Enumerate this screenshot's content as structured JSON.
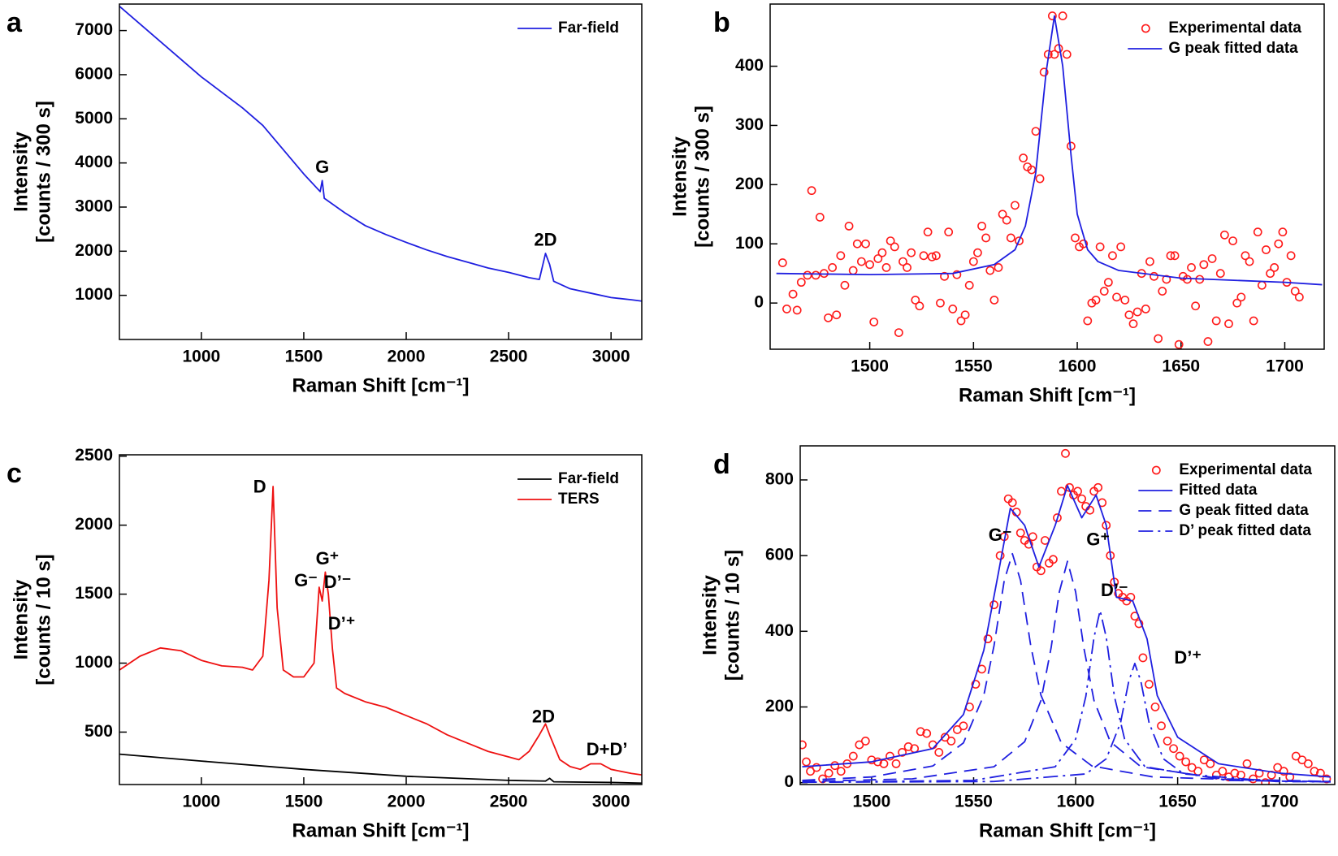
{
  "chart_data": [
    {
      "type": "line",
      "panel": "a",
      "x_label": "Raman Shift [cm⁻¹]",
      "y_label": [
        "Intensity",
        "[counts / 300 s]"
      ],
      "xlim": [
        600,
        3150
      ],
      "xticks": [
        1000,
        1500,
        2000,
        2500,
        3000
      ],
      "ylim": [
        0,
        7600
      ],
      "yticks": [
        1000,
        2000,
        3000,
        4000,
        5000,
        6000,
        7000
      ],
      "legend": "upper right",
      "series": [
        {
          "name": "Far-field",
          "color": "#1f1fe0",
          "style": "line",
          "x": [
            600,
            700,
            800,
            900,
            1000,
            1100,
            1200,
            1300,
            1400,
            1500,
            1580,
            1590,
            1600,
            1700,
            1800,
            1900,
            2000,
            2100,
            2200,
            2300,
            2400,
            2500,
            2600,
            2650,
            2680,
            2700,
            2720,
            2800,
            2900,
            3000,
            3100,
            3150
          ],
          "values": [
            7550,
            7150,
            6750,
            6350,
            5950,
            5600,
            5250,
            4850,
            4300,
            3750,
            3350,
            3600,
            3200,
            2870,
            2580,
            2380,
            2200,
            2030,
            1880,
            1750,
            1620,
            1520,
            1400,
            1360,
            1950,
            1700,
            1320,
            1150,
            1050,
            950,
            900,
            870
          ]
        }
      ],
      "annotations": [
        {
          "text": "G",
          "x": 1590,
          "y": 3880
        },
        {
          "text": "2D",
          "x": 2680,
          "y": 2230
        }
      ]
    },
    {
      "type": "combo",
      "panel": "b",
      "x_label": "Raman Shift [cm⁻¹]",
      "y_label": [
        "Intensity",
        "[counts / 300 s]"
      ],
      "xlim": [
        1452,
        1719
      ],
      "xticks": [
        1500,
        1550,
        1600,
        1650,
        1700
      ],
      "ylim": [
        -78,
        505
      ],
      "yticks": [
        0,
        100,
        200,
        300,
        400
      ],
      "legend": "upper right",
      "series": [
        {
          "name": "Experimental data",
          "color": "#ff1a1a",
          "style": "markers",
          "x": [
            1458,
            1460,
            1463,
            1465,
            1467,
            1470,
            1472,
            1474,
            1476,
            1478,
            1480,
            1482,
            1484,
            1486,
            1488,
            1490,
            1492,
            1494,
            1496,
            1498,
            1500,
            1502,
            1504,
            1506,
            1508,
            1510,
            1512,
            1514,
            1516,
            1518,
            1520,
            1522,
            1524,
            1526,
            1528,
            1530,
            1532,
            1534,
            1536,
            1538,
            1540,
            1542,
            1544,
            1546,
            1548,
            1550,
            1552,
            1554,
            1556,
            1558,
            1560,
            1562,
            1564,
            1566,
            1568,
            1570,
            1572,
            1574,
            1576,
            1578,
            1580,
            1582,
            1584,
            1586,
            1588,
            1589,
            1591,
            1593,
            1595,
            1597,
            1599,
            1601,
            1603,
            1605,
            1607,
            1609,
            1611,
            1613,
            1615,
            1617,
            1619,
            1621,
            1623,
            1625,
            1627,
            1629,
            1631,
            1633,
            1635,
            1637,
            1639,
            1641,
            1643,
            1645,
            1647,
            1649,
            1651,
            1653,
            1655,
            1657,
            1659,
            1661,
            1663,
            1665,
            1667,
            1669,
            1671,
            1673,
            1675,
            1677,
            1679,
            1681,
            1683,
            1685,
            1687,
            1689,
            1691,
            1693,
            1695,
            1697,
            1699,
            1701,
            1703,
            1705,
            1707
          ],
          "values": [
            68,
            -10,
            15,
            -12,
            35,
            47,
            190,
            47,
            145,
            50,
            -25,
            60,
            -20,
            80,
            30,
            130,
            55,
            100,
            70,
            100,
            65,
            -32,
            75,
            85,
            60,
            105,
            95,
            -50,
            70,
            60,
            85,
            5,
            -5,
            80,
            120,
            78,
            80,
            0,
            45,
            120,
            -10,
            48,
            -30,
            -20,
            30,
            70,
            85,
            130,
            110,
            55,
            5,
            60,
            150,
            140,
            110,
            165,
            105,
            245,
            230,
            225,
            290,
            210,
            390,
            420,
            485,
            420,
            430,
            485,
            420,
            265,
            110,
            95,
            100,
            -30,
            0,
            5,
            95,
            20,
            35,
            80,
            10,
            95,
            5,
            -20,
            -35,
            -15,
            50,
            -10,
            70,
            45,
            -60,
            20,
            40,
            80,
            80,
            -70,
            45,
            40,
            60,
            -5,
            40,
            65,
            -65,
            75,
            -30,
            50,
            115,
            -35,
            105,
            0,
            10,
            80,
            70,
            -30,
            120,
            30,
            90,
            50,
            60,
            100,
            120,
            35,
            80,
            20,
            10
          ]
        },
        {
          "name": "G peak fitted data",
          "color": "#1f1fe0",
          "style": "line",
          "x": [
            1455,
            1500,
            1540,
            1560,
            1570,
            1575,
            1580,
            1585,
            1589,
            1593,
            1597,
            1600,
            1605,
            1610,
            1620,
            1650,
            1700,
            1718
          ],
          "values": [
            50,
            48,
            50,
            65,
            90,
            130,
            220,
            390,
            485,
            400,
            250,
            150,
            90,
            70,
            55,
            42,
            35,
            31
          ]
        }
      ]
    },
    {
      "type": "line",
      "panel": "c",
      "x_label": "Raman Shift [cm⁻¹]",
      "y_label": [
        "Intensity",
        "[counts / 10 s]"
      ],
      "xlim": [
        600,
        3150
      ],
      "xticks": [
        1000,
        1500,
        2000,
        2500,
        3000
      ],
      "ylim": [
        120,
        2510
      ],
      "yticks": [
        500,
        1000,
        1500,
        2000,
        2500
      ],
      "legend": "upper right",
      "series": [
        {
          "name": "Far-field",
          "color": "#000000",
          "style": "line",
          "x": [
            600,
            1000,
            1500,
            2000,
            2500,
            2680,
            2700,
            2720,
            3000,
            3150
          ],
          "values": [
            340,
            290,
            230,
            180,
            150,
            145,
            165,
            140,
            135,
            130
          ]
        },
        {
          "name": "TERS",
          "color": "#ee1111",
          "style": "line",
          "x": [
            600,
            700,
            800,
            900,
            1000,
            1100,
            1200,
            1250,
            1300,
            1330,
            1350,
            1370,
            1400,
            1450,
            1500,
            1550,
            1575,
            1590,
            1605,
            1620,
            1640,
            1660,
            1700,
            1800,
            1900,
            2000,
            2100,
            2200,
            2300,
            2400,
            2500,
            2550,
            2600,
            2650,
            2680,
            2700,
            2750,
            2800,
            2850,
            2900,
            2950,
            3000,
            3100,
            3150
          ],
          "values": [
            950,
            1050,
            1110,
            1090,
            1020,
            980,
            970,
            950,
            1050,
            1600,
            2280,
            1400,
            950,
            900,
            900,
            1000,
            1550,
            1450,
            1660,
            1500,
            1100,
            820,
            780,
            720,
            680,
            620,
            560,
            480,
            420,
            360,
            320,
            300,
            360,
            480,
            560,
            480,
            300,
            250,
            230,
            270,
            270,
            230,
            200,
            190
          ]
        }
      ],
      "annotations": [
        {
          "text": "D",
          "x": 1285,
          "y": 2270
        },
        {
          "text": "G⁻",
          "x": 1510,
          "y": 1590
        },
        {
          "text": "G⁺",
          "x": 1615,
          "y": 1750
        },
        {
          "text": "D’⁻",
          "x": 1665,
          "y": 1580
        },
        {
          "text": "D’⁺",
          "x": 1685,
          "y": 1280
        },
        {
          "text": "2D",
          "x": 2670,
          "y": 605
        },
        {
          "text": "D+D’",
          "x": 2980,
          "y": 365
        }
      ]
    },
    {
      "type": "combo",
      "panel": "d",
      "x_label": "Raman Shift [cm⁻¹]",
      "y_label": [
        "Intensity",
        "[counts / 10 s]"
      ],
      "xlim": [
        1465,
        1727
      ],
      "xticks": [
        1500,
        1550,
        1600,
        1650,
        1700
      ],
      "ylim": [
        -5,
        890
      ],
      "yticks": [
        0,
        200,
        400,
        600,
        800
      ],
      "legend": "upper right",
      "series": [
        {
          "name": "Experimental data",
          "color": "#ff1a1a",
          "style": "markers",
          "x": [
            1466,
            1468,
            1470,
            1473,
            1476,
            1479,
            1482,
            1485,
            1488,
            1491,
            1494,
            1497,
            1500,
            1503,
            1506,
            1509,
            1512,
            1515,
            1518,
            1521,
            1524,
            1527,
            1530,
            1533,
            1536,
            1539,
            1542,
            1545,
            1548,
            1551,
            1554,
            1557,
            1560,
            1563,
            1565,
            1567,
            1569,
            1571,
            1573,
            1575,
            1577,
            1579,
            1581,
            1583,
            1585,
            1587,
            1589,
            1591,
            1593,
            1595,
            1597,
            1599,
            1601,
            1603,
            1605,
            1607,
            1609,
            1611,
            1613,
            1615,
            1617,
            1619,
            1621,
            1623,
            1625,
            1627,
            1629,
            1631,
            1633,
            1636,
            1639,
            1642,
            1645,
            1648,
            1651,
            1654,
            1657,
            1660,
            1663,
            1666,
            1669,
            1672,
            1675,
            1678,
            1681,
            1684,
            1687,
            1690,
            1693,
            1696,
            1699,
            1702,
            1705,
            1708,
            1711,
            1714,
            1717,
            1720,
            1723
          ],
          "values": [
            100,
            55,
            30,
            40,
            10,
            25,
            45,
            30,
            50,
            70,
            100,
            110,
            60,
            55,
            50,
            70,
            50,
            80,
            95,
            90,
            135,
            130,
            100,
            80,
            120,
            110,
            140,
            150,
            200,
            260,
            300,
            380,
            470,
            600,
            650,
            750,
            740,
            715,
            660,
            640,
            630,
            650,
            570,
            560,
            640,
            580,
            590,
            700,
            770,
            870,
            780,
            760,
            770,
            750,
            730,
            720,
            770,
            780,
            740,
            680,
            600,
            530,
            500,
            490,
            480,
            490,
            440,
            420,
            330,
            260,
            200,
            150,
            110,
            90,
            70,
            55,
            40,
            30,
            60,
            50,
            20,
            30,
            15,
            25,
            20,
            50,
            10,
            25,
            0,
            20,
            40,
            30,
            15,
            70,
            60,
            50,
            30,
            25,
            10
          ]
        },
        {
          "name": "Fitted data",
          "color": "#1f1fe0",
          "style": "line",
          "x": [
            1466,
            1500,
            1530,
            1545,
            1555,
            1562,
            1568,
            1575,
            1582,
            1590,
            1596,
            1603,
            1610,
            1615,
            1620,
            1628,
            1635,
            1640,
            1650,
            1670,
            1700,
            1725
          ],
          "values": [
            42,
            55,
            90,
            180,
            350,
            550,
            725,
            680,
            570,
            680,
            785,
            700,
            760,
            680,
            490,
            480,
            380,
            230,
            120,
            50,
            25,
            15
          ]
        },
        {
          "name": "G peak fitted data",
          "color": "#1f1fe0",
          "style": "dashed",
          "x": [
            1466,
            1500,
            1530,
            1545,
            1555,
            1560,
            1565,
            1569,
            1573,
            1578,
            1583,
            1593,
            1608,
            1638,
            1700,
            1725
          ],
          "values": [
            6,
            15,
            44,
            105,
            231,
            362,
            534,
            605,
            534,
            362,
            231,
            105,
            44,
            15,
            4,
            3
          ]
        },
        {
          "name": "G peak fitted data",
          "color": "#1f1fe0",
          "style": "dashed",
          "x": [
            1466,
            1520,
            1560,
            1575,
            1583,
            1588,
            1592,
            1596,
            1600,
            1604,
            1609,
            1617,
            1632,
            1672,
            1725
          ],
          "values": [
            3,
            10,
            42,
            108,
            217,
            357,
            504,
            585,
            504,
            357,
            217,
            108,
            42,
            10,
            3
          ]
        },
        {
          "name": "D’ peak fitted data",
          "color": "#1f1fe0",
          "style": "dashdot",
          "x": [
            1466,
            1550,
            1590,
            1600,
            1605,
            1609,
            1612,
            1615,
            1619,
            1624,
            1634,
            1674,
            1725
          ],
          "values": [
            1,
            6,
            42,
            115,
            228,
            384,
            455,
            384,
            228,
            115,
            42,
            6,
            2
          ]
        },
        {
          "name": "D’ peak fitted data",
          "color": "#1f1fe0",
          "style": "dashdot",
          "x": [
            1466,
            1560,
            1605,
            1615,
            1622,
            1626,
            1629,
            1632,
            1636,
            1643,
            1653,
            1698,
            1725
          ],
          "values": [
            1,
            3,
            23,
            63,
            158,
            267,
            315,
            267,
            158,
            63,
            23,
            3,
            2
          ]
        }
      ],
      "annotations": [
        {
          "text": "G⁻",
          "x": 1563,
          "y": 651
        },
        {
          "text": "G⁺",
          "x": 1611,
          "y": 640
        },
        {
          "text": "D’⁻",
          "x": 1619,
          "y": 505
        },
        {
          "text": "D’⁺",
          "x": 1655,
          "y": 327
        }
      ]
    }
  ]
}
